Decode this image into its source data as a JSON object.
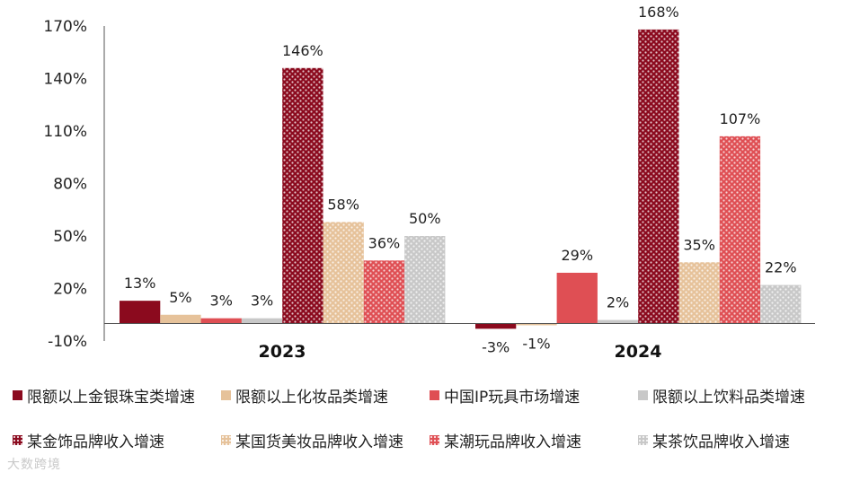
{
  "chart_data": {
    "type": "bar",
    "categories": [
      "2023",
      "2024"
    ],
    "series": [
      {
        "name": "限额以上金银珠宝类增速",
        "values": [
          13,
          -3
        ],
        "labels": [
          "13%",
          "-3%"
        ],
        "color": "#8b0a1e",
        "pattern": false
      },
      {
        "name": "限额以上化妆品类增速",
        "values": [
          5,
          -1
        ],
        "labels": [
          "5%",
          "-1%"
        ],
        "color": "#e6c29a",
        "pattern": false
      },
      {
        "name": "中国IP玩具市场增速",
        "values": [
          3,
          29
        ],
        "labels": [
          "3%",
          "29%"
        ],
        "color": "#df4f54",
        "pattern": false
      },
      {
        "name": "限额以上饮料品类增速",
        "values": [
          3,
          2
        ],
        "labels": [
          "3%",
          "2%"
        ],
        "color": "#c8c8c8",
        "pattern": false
      },
      {
        "name": "某金饰品牌收入增速",
        "values": [
          146,
          168
        ],
        "labels": [
          "146%",
          "168%"
        ],
        "color": "#8b0a1e",
        "pattern": true
      },
      {
        "name": "某国货美妆品牌收入增速",
        "values": [
          58,
          35
        ],
        "labels": [
          "58%",
          "35%"
        ],
        "color": "#e6c29a",
        "pattern": true
      },
      {
        "name": "某潮玩品牌收入增速",
        "values": [
          36,
          107
        ],
        "labels": [
          "36%",
          "107%"
        ],
        "color": "#df4f54",
        "pattern": true
      },
      {
        "name": "某茶饮品牌收入增速",
        "values": [
          50,
          22
        ],
        "labels": [
          "50%",
          "22%"
        ],
        "color": "#c8c8c8",
        "pattern": true
      }
    ],
    "yticks": [
      "170%",
      "140%",
      "110%",
      "80%",
      "50%",
      "20%",
      "-10%"
    ],
    "ylim": [
      -10,
      170
    ],
    "grid": false,
    "legend_position": "bottom"
  },
  "watermark": "大数跨境"
}
